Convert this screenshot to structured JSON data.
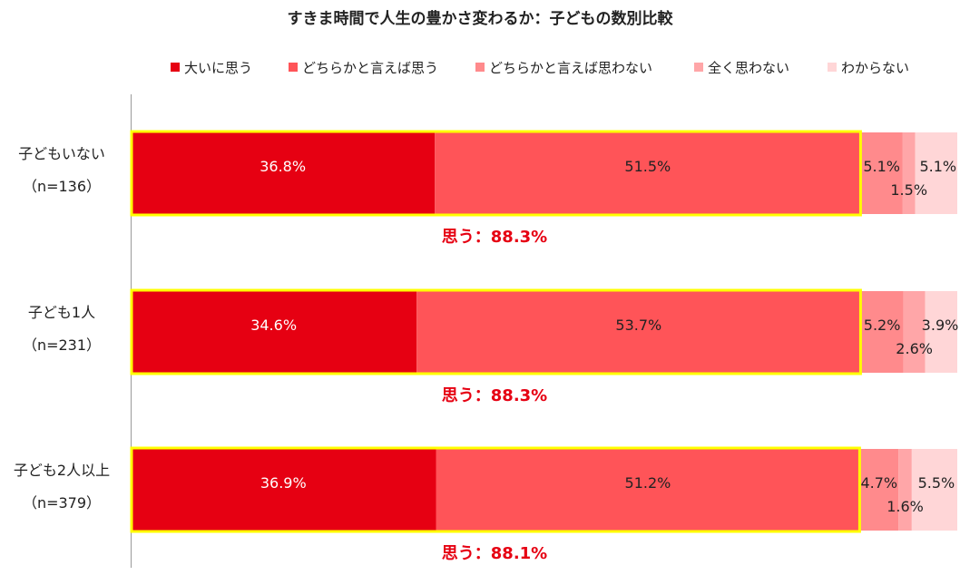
{
  "chart_data": {
    "type": "bar",
    "orientation": "horizontal",
    "stacked": "100%",
    "title": "すきま時間で人生の豊かさ変わるか：子どもの数別比較",
    "legend_position": "top",
    "categories": [
      {
        "name": "子どもいない",
        "n": "（n=136）"
      },
      {
        "name": "子ども1人",
        "n": "（n=231）"
      },
      {
        "name": "子ども2人以上",
        "n": "（n=379）"
      }
    ],
    "series": [
      {
        "name": "大いに思う",
        "color": "#e60012",
        "values": [
          36.8,
          34.6,
          36.9
        ],
        "labels": [
          "36.8%",
          "34.6%",
          "36.9%"
        ]
      },
      {
        "name": "どちらかと言えば思う",
        "color": "#ff5458",
        "values": [
          51.5,
          53.7,
          51.2
        ],
        "labels": [
          "51.5%",
          "53.7%",
          "51.2%"
        ]
      },
      {
        "name": "どちらかと言えば思わない",
        "color": "#ff8a8c",
        "values": [
          5.1,
          5.2,
          4.7
        ],
        "labels": [
          "5.1%",
          "5.2%",
          "4.7%"
        ]
      },
      {
        "name": "全く思わない",
        "color": "#ffa6a8",
        "values": [
          1.5,
          2.6,
          1.6
        ],
        "labels": [
          "1.5%",
          "2.6%",
          "1.6%"
        ]
      },
      {
        "name": "わからない",
        "color": "#ffd6d7",
        "values": [
          5.1,
          3.9,
          5.5
        ],
        "labels": [
          "5.1%",
          "3.9%",
          "5.5%"
        ]
      }
    ],
    "highlight": {
      "color": "#ffff00",
      "labels": [
        "思う：88.3%",
        "思う：88.3%",
        "思う：88.1%"
      ],
      "label_color": "#e60012"
    },
    "xlim": [
      0,
      100
    ],
    "grid": false
  }
}
